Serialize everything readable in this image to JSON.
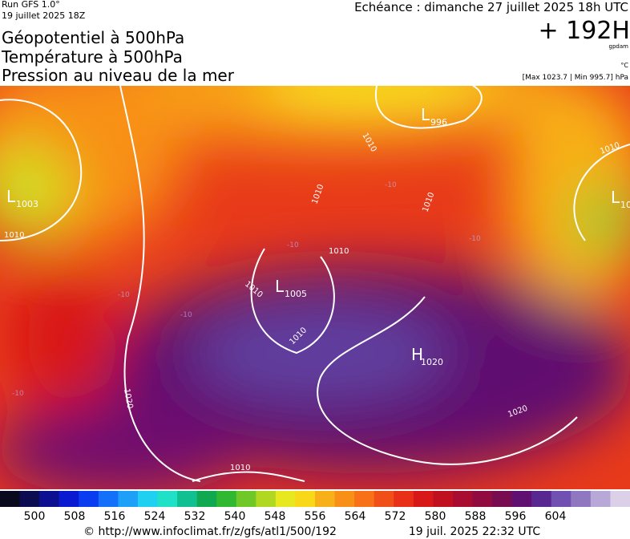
{
  "header": {
    "run": "Run GFS 1.0°",
    "run_date": "19 juillet 2025 18Z",
    "valid": "Echéance : dimanche 27 juillet 2025 18h UTC",
    "lead": "+ 192H",
    "unit_geo": "gpdam",
    "unit_temp": "°C",
    "pressure_range": "[Max 1023.7 | Min 995.7] hPa",
    "lines": [
      "Géopotentiel à 500hPa",
      "Température à 500hPa",
      "Pression au niveau de la mer"
    ]
  },
  "map": {
    "centers": [
      {
        "letter": "L",
        "value": 1003
      },
      {
        "letter": "L",
        "value": 996
      },
      {
        "letter": "L",
        "value": 1005
      },
      {
        "letter": "H",
        "value": 1020
      },
      {
        "letter": "L",
        "value": 10
      }
    ],
    "isobar_labels": [
      1010,
      1010,
      1010,
      1010,
      1010,
      1010,
      1010,
      1020,
      1020,
      1010,
      1010
    ],
    "temp_labels": [
      -10,
      -10,
      -10,
      -10,
      -10,
      -10
    ]
  },
  "colorbar": {
    "ticks": [
      500,
      508,
      516,
      524,
      532,
      540,
      548,
      556,
      564,
      572,
      580,
      588,
      596,
      604
    ],
    "colors": [
      "#0a0a1e",
      "#0c0c50",
      "#0c1090",
      "#0a1ad0",
      "#0a3cf0",
      "#1470f8",
      "#1ea0f8",
      "#20d0f0",
      "#20e0c8",
      "#10c090",
      "#10a850",
      "#30b830",
      "#70c828",
      "#b0d820",
      "#e8e820",
      "#f8d818",
      "#f8b018",
      "#f89018",
      "#f87018",
      "#f05018",
      "#e83018",
      "#d81818",
      "#c01020",
      "#a80c30",
      "#900c40",
      "#780c50",
      "#601070",
      "#582890",
      "#7050b0",
      "#9078c0",
      "#b8a8d8",
      "#dcd0e8"
    ]
  },
  "footer": {
    "url": "© http://www.infoclimat.fr/z/gfs/atl1/500/192",
    "timestamp": "19 juil. 2025 22:32 UTC"
  }
}
